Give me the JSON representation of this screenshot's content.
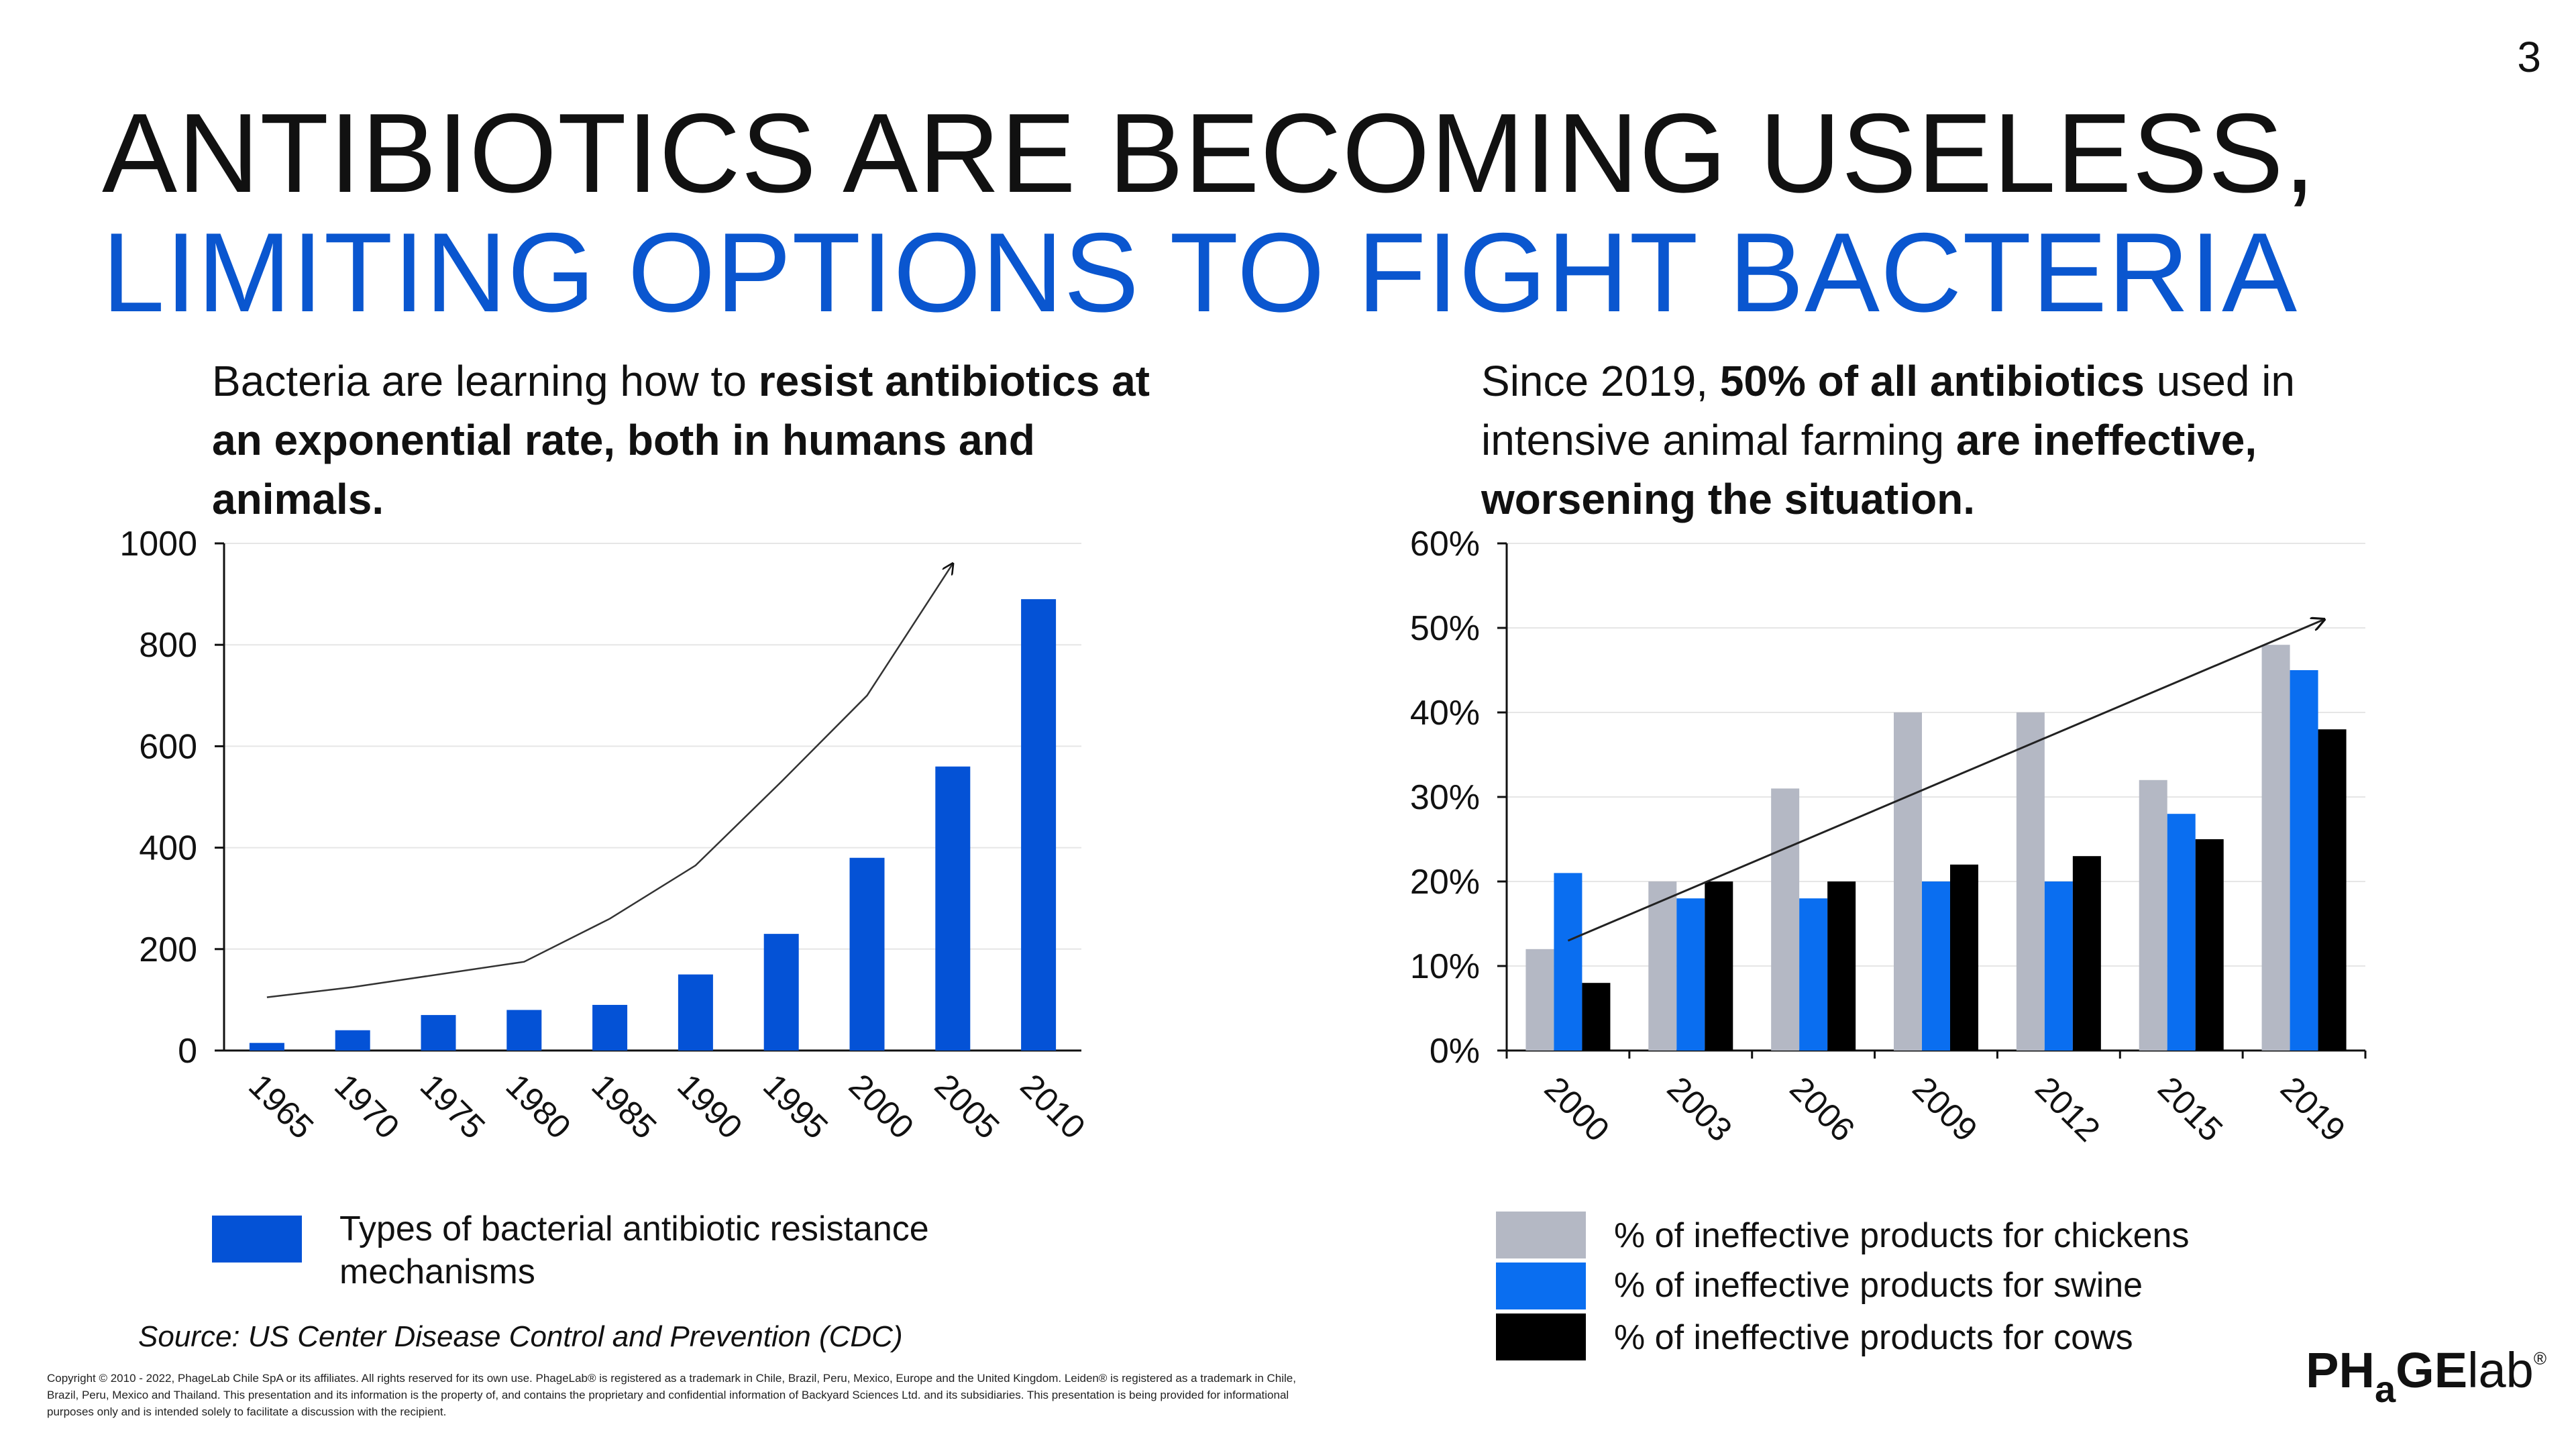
{
  "page_number": "3",
  "title": {
    "line1": "ANTIBIOTICS ARE BECOMING USELESS,",
    "line2": "LIMITING OPTIONS TO FIGHT BACTERIA"
  },
  "left_caption": {
    "part1": "Bacteria are learning how to ",
    "part2": "resist antibiotics at an exponential rate, both in humans and animals."
  },
  "right_caption": {
    "part1": "Since 2019, ",
    "part2": "50% of all antibiotics",
    "part3": " used in intensive animal farming ",
    "part4": "are ineffective, worsening the situation."
  },
  "chart_data": [
    {
      "type": "bar",
      "categories": [
        "1965",
        "1970",
        "1975",
        "1980",
        "1985",
        "1990",
        "1995",
        "2000",
        "2005",
        "2010"
      ],
      "series": [
        {
          "name": "Types of bacterial antibiotic resistance mechanisms",
          "values": [
            15,
            40,
            70,
            80,
            90,
            150,
            230,
            380,
            560,
            890
          ]
        }
      ],
      "trend_line": [
        105,
        125,
        150,
        175,
        260,
        365,
        530,
        700,
        960
      ],
      "yticks": [
        "0",
        "200",
        "400",
        "600",
        "800",
        "1000"
      ],
      "ylim": [
        0,
        1000
      ],
      "grid": true,
      "legend_position": "bottom-left",
      "colors": {
        "bar": "#0452d6"
      }
    },
    {
      "type": "bar",
      "categories": [
        "2000",
        "2003",
        "2006",
        "2009",
        "2012",
        "2015",
        "2019"
      ],
      "series": [
        {
          "name": "% of ineffective products for chickens",
          "values": [
            12,
            20,
            31,
            40,
            40,
            32,
            48
          ]
        },
        {
          "name": "% of ineffective products for swine",
          "values": [
            21,
            18,
            18,
            20,
            20,
            28,
            45
          ]
        },
        {
          "name": "% of ineffective products for cows",
          "values": [
            8,
            20,
            20,
            22,
            23,
            25,
            38
          ]
        }
      ],
      "trend_line": [
        [
          0,
          13
        ],
        [
          6,
          51
        ]
      ],
      "yticks": [
        "0%",
        "10%",
        "20%",
        "30%",
        "40%",
        "50%",
        "60%"
      ],
      "ylim": [
        0,
        60
      ],
      "grid": true,
      "legend_position": "bottom",
      "colors": {
        "chickens": "#b4b8c4",
        "swine": "#0a6ef0",
        "cows": "#000000"
      }
    }
  ],
  "legend_left": {
    "label": "Types of bacterial antibiotic resistance mechanisms",
    "color": "#0452d6"
  },
  "source": "Source: US Center Disease Control and Prevention (CDC)",
  "copyright": "Copyright © 2010 - 2022, PhageLab Chile SpA or its affiliates. All rights reserved for its own use. PhageLab® is registered as a trademark in Chile, Brazil, Peru, Mexico, Europe and the United Kingdom. Leiden® is registered as a trademark in Chile, Brazil, Peru, Mexico and Thailand. This presentation and its information is the property of, and contains the proprietary and confidential information of Backyard Sciences Ltd. and its subsidiaries. This presentation is being provided for informational purposes only and is intended solely to facilitate a discussion with the recipient.",
  "logo": {
    "part1": "PH",
    "part2": "a",
    "part3": "GE",
    "part4": "lab",
    "reg": "®"
  }
}
